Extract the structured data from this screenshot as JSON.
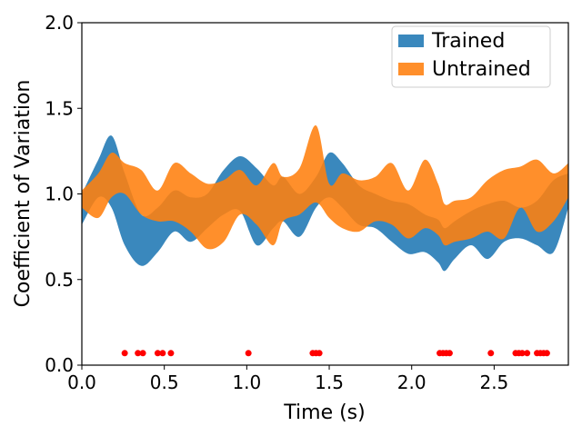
{
  "chart_data": {
    "type": "area",
    "title": "",
    "xlabel": "Time (s)",
    "ylabel": "Coefficient of Variation",
    "xlim": [
      0,
      2.95
    ],
    "ylim": [
      0,
      2.0
    ],
    "x_ticks": [
      "0.0",
      "0.5",
      "1.0",
      "1.5",
      "2.0",
      "2.5"
    ],
    "y_ticks": [
      "0.0",
      "0.5",
      "1.0",
      "1.5",
      "2.0"
    ],
    "grid": false,
    "legend_position": "top-right",
    "series": [
      {
        "name": "Trained",
        "color": "#1f77b4",
        "x": [
          0.0,
          0.1,
          0.18,
          0.26,
          0.36,
          0.46,
          0.56,
          0.66,
          0.76,
          0.86,
          0.96,
          1.06,
          1.16,
          1.22,
          1.32,
          1.42,
          1.5,
          1.58,
          1.68,
          1.78,
          1.88,
          1.98,
          2.08,
          2.16,
          2.2,
          2.26,
          2.36,
          2.46,
          2.56,
          2.66,
          2.76,
          2.86,
          2.95
        ],
        "upper": [
          1.0,
          1.2,
          1.34,
          1.12,
          0.88,
          0.92,
          1.02,
          0.98,
          1.0,
          1.14,
          1.22,
          1.15,
          1.05,
          1.1,
          1.0,
          1.1,
          1.24,
          1.18,
          1.05,
          1.0,
          0.96,
          0.94,
          0.88,
          0.85,
          0.8,
          0.84,
          0.9,
          0.94,
          0.96,
          0.92,
          0.96,
          1.08,
          1.12
        ],
        "lower": [
          0.82,
          0.98,
          0.92,
          0.7,
          0.58,
          0.66,
          0.78,
          0.72,
          0.8,
          0.88,
          0.9,
          0.7,
          0.8,
          0.84,
          0.75,
          0.92,
          0.98,
          0.92,
          0.82,
          0.8,
          0.72,
          0.65,
          0.66,
          0.6,
          0.55,
          0.62,
          0.7,
          0.62,
          0.72,
          0.74,
          0.7,
          0.66,
          0.92
        ]
      },
      {
        "name": "Untrained",
        "color": "#ff7f0e",
        "x": [
          0.0,
          0.1,
          0.18,
          0.26,
          0.36,
          0.46,
          0.56,
          0.66,
          0.76,
          0.86,
          0.96,
          1.06,
          1.16,
          1.22,
          1.32,
          1.42,
          1.5,
          1.58,
          1.68,
          1.78,
          1.88,
          1.98,
          2.08,
          2.16,
          2.2,
          2.26,
          2.36,
          2.46,
          2.56,
          2.66,
          2.76,
          2.86,
          2.95
        ],
        "upper": [
          1.02,
          1.12,
          1.24,
          1.18,
          1.14,
          1.02,
          1.18,
          1.12,
          1.06,
          1.08,
          1.14,
          1.05,
          1.18,
          1.1,
          1.15,
          1.4,
          1.06,
          1.12,
          1.08,
          1.1,
          1.18,
          1.02,
          1.2,
          1.06,
          0.94,
          0.96,
          0.98,
          1.08,
          1.14,
          1.16,
          1.2,
          1.12,
          1.18
        ],
        "lower": [
          0.92,
          0.86,
          0.98,
          1.0,
          0.88,
          0.84,
          0.84,
          0.78,
          0.68,
          0.72,
          0.88,
          0.82,
          0.7,
          0.84,
          0.88,
          0.95,
          0.86,
          0.8,
          0.78,
          0.84,
          0.82,
          0.74,
          0.8,
          0.76,
          0.7,
          0.72,
          0.74,
          0.78,
          0.74,
          0.92,
          0.78,
          0.84,
          0.98
        ]
      }
    ],
    "markers": {
      "color": "#ff0000",
      "y": 0.07,
      "x": [
        0.26,
        0.34,
        0.37,
        0.46,
        0.49,
        0.54,
        1.01,
        1.4,
        1.42,
        1.44,
        2.17,
        2.19,
        2.21,
        2.23,
        2.48,
        2.63,
        2.65,
        2.67,
        2.7,
        2.76,
        2.78,
        2.8,
        2.82
      ]
    }
  }
}
